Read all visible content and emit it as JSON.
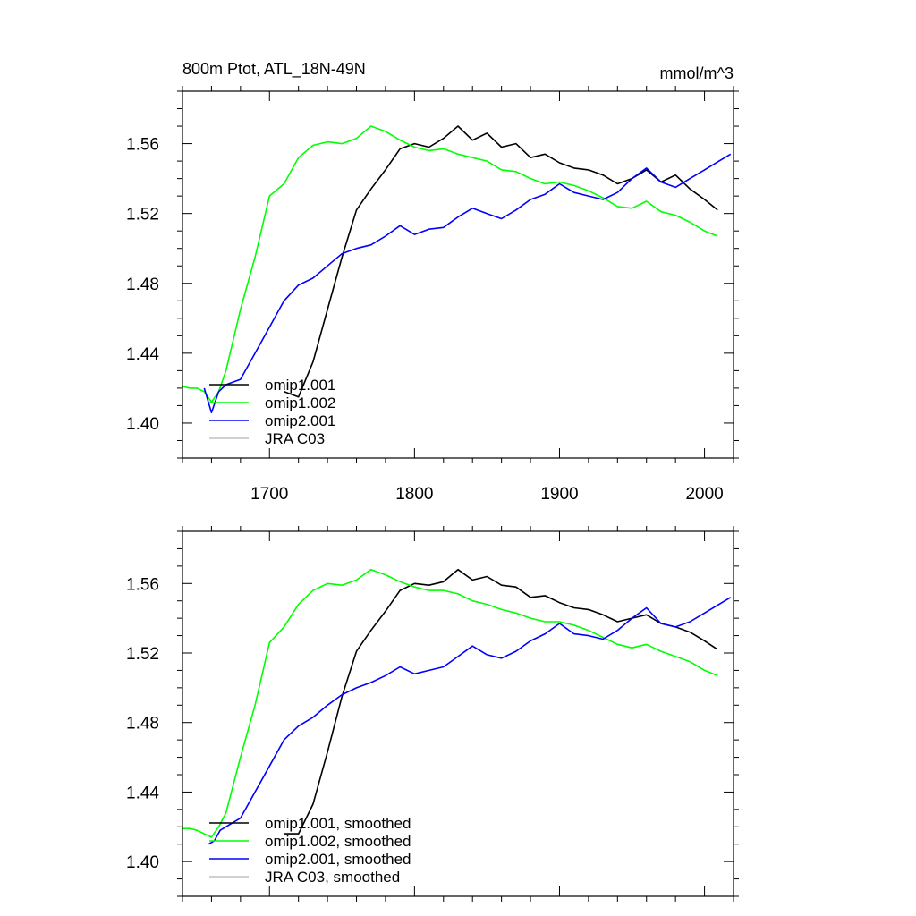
{
  "colors": {
    "omip1_001": "#000000",
    "omip1_002": "#00ff00",
    "omip2_001": "#0000ff",
    "jra_c03": "#c0c0c0"
  },
  "chart_data": [
    {
      "type": "line",
      "title": "800m Ptot, ATL_18N-49N",
      "units": "mmol/m^3",
      "xlim": [
        1640,
        2020
      ],
      "ylim": [
        1.38,
        1.59
      ],
      "xticks": [
        1700,
        1800,
        1900,
        2000
      ],
      "xtick_labels": [
        "1700",
        "1800",
        "1900",
        "2000"
      ],
      "yticks": [
        1.4,
        1.44,
        1.48,
        1.52,
        1.56
      ],
      "ytick_labels": [
        "1.40",
        "1.44",
        "1.48",
        "1.52",
        "1.56"
      ],
      "legend_position": "bottom-left",
      "series": [
        {
          "name": "omip1.001",
          "color": "#000000",
          "x": [
            1710,
            1720,
            1730,
            1740,
            1750,
            1760,
            1770,
            1780,
            1790,
            1800,
            1810,
            1820,
            1830,
            1840,
            1850,
            1860,
            1870,
            1880,
            1890,
            1900,
            1910,
            1920,
            1930,
            1940,
            1950,
            1960,
            1970,
            1980,
            1990,
            2000,
            2009
          ],
          "y": [
            1.418,
            1.415,
            1.435,
            1.465,
            1.495,
            1.522,
            1.534,
            1.545,
            1.557,
            1.56,
            1.558,
            1.563,
            1.57,
            1.562,
            1.566,
            1.558,
            1.56,
            1.552,
            1.554,
            1.549,
            1.546,
            1.545,
            1.542,
            1.537,
            1.54,
            1.545,
            1.538,
            1.542,
            1.534,
            1.528,
            1.522
          ]
        },
        {
          "name": "omip1.002",
          "color": "#00ff00",
          "x": [
            1640,
            1645,
            1650,
            1655,
            1660,
            1665,
            1670,
            1680,
            1690,
            1700,
            1710,
            1720,
            1730,
            1740,
            1750,
            1760,
            1770,
            1780,
            1790,
            1800,
            1810,
            1820,
            1830,
            1840,
            1850,
            1860,
            1870,
            1880,
            1890,
            1900,
            1910,
            1920,
            1930,
            1940,
            1950,
            1960,
            1970,
            1980,
            1990,
            2000,
            2009
          ],
          "y": [
            1.421,
            1.42,
            1.42,
            1.418,
            1.412,
            1.418,
            1.43,
            1.465,
            1.495,
            1.53,
            1.537,
            1.552,
            1.559,
            1.561,
            1.56,
            1.563,
            1.57,
            1.567,
            1.562,
            1.558,
            1.556,
            1.557,
            1.554,
            1.552,
            1.55,
            1.545,
            1.544,
            1.54,
            1.537,
            1.538,
            1.536,
            1.533,
            1.529,
            1.524,
            1.523,
            1.527,
            1.521,
            1.519,
            1.515,
            1.51,
            1.507
          ]
        },
        {
          "name": "omip2.001",
          "color": "#0000ff",
          "x": [
            1655,
            1660,
            1665,
            1670,
            1680,
            1690,
            1700,
            1710,
            1720,
            1730,
            1740,
            1750,
            1760,
            1770,
            1780,
            1790,
            1800,
            1810,
            1820,
            1830,
            1840,
            1850,
            1860,
            1870,
            1880,
            1890,
            1900,
            1910,
            1920,
            1930,
            1940,
            1950,
            1960,
            1970,
            1980,
            1990,
            2000,
            2010,
            2018
          ],
          "y": [
            1.42,
            1.406,
            1.418,
            1.422,
            1.425,
            1.44,
            1.455,
            1.47,
            1.479,
            1.483,
            1.49,
            1.497,
            1.5,
            1.502,
            1.507,
            1.513,
            1.508,
            1.511,
            1.512,
            1.518,
            1.523,
            1.52,
            1.517,
            1.522,
            1.528,
            1.531,
            1.537,
            1.532,
            1.53,
            1.528,
            1.532,
            1.54,
            1.546,
            1.538,
            1.535,
            1.54,
            1.545,
            1.55,
            1.554
          ]
        },
        {
          "name": "JRA C03",
          "color": "#c0c0c0",
          "x": [],
          "y": []
        }
      ]
    },
    {
      "type": "line",
      "title": "",
      "units": "",
      "xlim": [
        1640,
        2020
      ],
      "ylim": [
        1.38,
        1.59
      ],
      "xticks": [
        1700,
        1800,
        1900,
        2000
      ],
      "xtick_labels": [],
      "yticks": [
        1.4,
        1.44,
        1.48,
        1.52,
        1.56
      ],
      "ytick_labels": [
        "1.40",
        "1.44",
        "1.48",
        "1.52",
        "1.56"
      ],
      "legend_position": "bottom-left",
      "series": [
        {
          "name": "omip1.001, smoothed",
          "color": "#000000",
          "x": [
            1710,
            1720,
            1730,
            1740,
            1750,
            1760,
            1770,
            1780,
            1790,
            1800,
            1810,
            1820,
            1830,
            1840,
            1850,
            1860,
            1870,
            1880,
            1890,
            1900,
            1910,
            1920,
            1930,
            1940,
            1950,
            1960,
            1970,
            1980,
            1990,
            2000,
            2009
          ],
          "y": [
            1.416,
            1.416,
            1.433,
            1.463,
            1.495,
            1.521,
            1.533,
            1.544,
            1.556,
            1.56,
            1.559,
            1.561,
            1.568,
            1.562,
            1.564,
            1.559,
            1.558,
            1.552,
            1.553,
            1.549,
            1.546,
            1.545,
            1.542,
            1.538,
            1.54,
            1.542,
            1.537,
            1.535,
            1.532,
            1.527,
            1.522
          ]
        },
        {
          "name": "omip1.002, smoothed",
          "color": "#00ff00",
          "x": [
            1640,
            1645,
            1650,
            1655,
            1660,
            1665,
            1670,
            1680,
            1690,
            1700,
            1710,
            1720,
            1730,
            1740,
            1750,
            1760,
            1770,
            1780,
            1790,
            1800,
            1810,
            1820,
            1830,
            1840,
            1850,
            1860,
            1870,
            1880,
            1890,
            1900,
            1910,
            1920,
            1930,
            1940,
            1950,
            1960,
            1970,
            1980,
            1990,
            2000,
            2009
          ],
          "y": [
            1.419,
            1.419,
            1.418,
            1.416,
            1.414,
            1.42,
            1.428,
            1.46,
            1.49,
            1.526,
            1.535,
            1.548,
            1.556,
            1.56,
            1.559,
            1.562,
            1.568,
            1.565,
            1.561,
            1.558,
            1.556,
            1.556,
            1.554,
            1.55,
            1.548,
            1.545,
            1.543,
            1.54,
            1.538,
            1.538,
            1.536,
            1.533,
            1.529,
            1.525,
            1.523,
            1.525,
            1.521,
            1.518,
            1.515,
            1.51,
            1.507
          ]
        },
        {
          "name": "omip2.001, smoothed",
          "color": "#0000ff",
          "x": [
            1658,
            1662,
            1666,
            1670,
            1680,
            1690,
            1700,
            1710,
            1720,
            1730,
            1740,
            1750,
            1760,
            1770,
            1780,
            1790,
            1800,
            1810,
            1820,
            1830,
            1840,
            1850,
            1860,
            1870,
            1880,
            1890,
            1900,
            1910,
            1920,
            1930,
            1940,
            1950,
            1960,
            1970,
            1980,
            1990,
            2000,
            2010,
            2018
          ],
          "y": [
            1.41,
            1.412,
            1.418,
            1.42,
            1.425,
            1.44,
            1.455,
            1.47,
            1.478,
            1.483,
            1.49,
            1.496,
            1.5,
            1.503,
            1.507,
            1.512,
            1.508,
            1.51,
            1.512,
            1.518,
            1.524,
            1.519,
            1.517,
            1.521,
            1.527,
            1.531,
            1.537,
            1.531,
            1.53,
            1.528,
            1.533,
            1.54,
            1.546,
            1.537,
            1.535,
            1.538,
            1.543,
            1.548,
            1.552
          ]
        },
        {
          "name": "JRA C03, smoothed",
          "color": "#c0c0c0",
          "x": [],
          "y": []
        }
      ]
    }
  ]
}
